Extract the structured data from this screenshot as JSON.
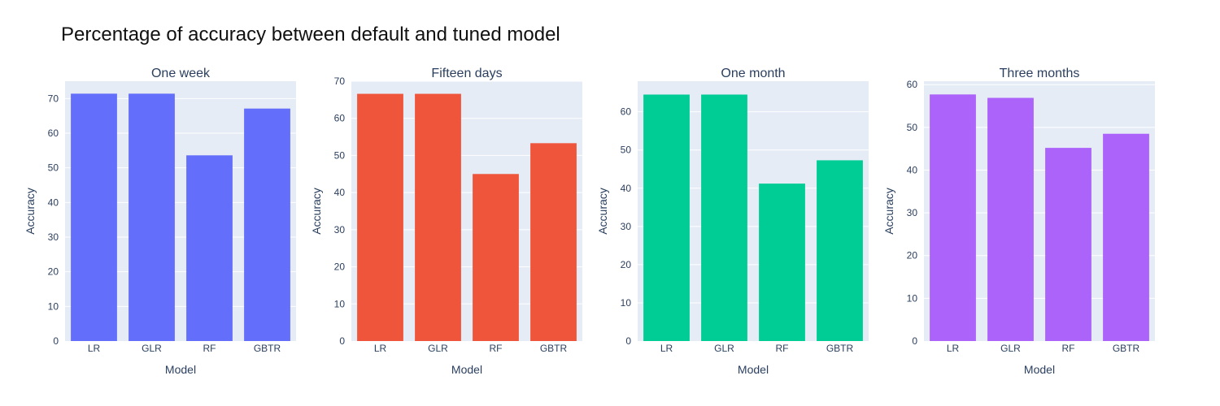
{
  "title": "Percentage of accuracy between default and tuned model",
  "chart_data": [
    {
      "type": "bar",
      "title": "One week",
      "categories": [
        "LR",
        "GLR",
        "RF",
        "GBTR"
      ],
      "values": [
        71.4,
        71.4,
        53.6,
        67.1
      ],
      "xlabel": "Model",
      "ylabel": "Accuracy",
      "ylim": [
        0,
        75
      ],
      "yticks": [
        0,
        10,
        20,
        30,
        40,
        50,
        60,
        70
      ],
      "color": "#636efa",
      "grid": true
    },
    {
      "type": "bar",
      "title": "Fifteen days",
      "categories": [
        "LR",
        "GLR",
        "RF",
        "GBTR"
      ],
      "values": [
        66.6,
        66.6,
        45.0,
        53.3
      ],
      "xlabel": "Model",
      "ylabel": "Accuracy",
      "ylim": [
        0,
        70
      ],
      "yticks": [
        0,
        10,
        20,
        30,
        40,
        50,
        60,
        70
      ],
      "color": "#ef553b",
      "grid": true
    },
    {
      "type": "bar",
      "title": "One month",
      "categories": [
        "LR",
        "GLR",
        "RF",
        "GBTR"
      ],
      "values": [
        64.5,
        64.5,
        41.2,
        47.3
      ],
      "xlabel": "Model",
      "ylabel": "Accuracy",
      "ylim": [
        0,
        68
      ],
      "yticks": [
        0,
        10,
        20,
        30,
        40,
        50,
        60
      ],
      "color": "#00cc96",
      "grid": true
    },
    {
      "type": "bar",
      "title": "Three months",
      "categories": [
        "LR",
        "GLR",
        "RF",
        "GBTR"
      ],
      "values": [
        57.7,
        56.9,
        45.2,
        48.5
      ],
      "xlabel": "Model",
      "ylabel": "Accuracy",
      "ylim": [
        0,
        60.8
      ],
      "yticks": [
        0,
        10,
        20,
        30,
        40,
        50,
        60
      ],
      "color": "#ab63fa",
      "grid": true
    }
  ]
}
